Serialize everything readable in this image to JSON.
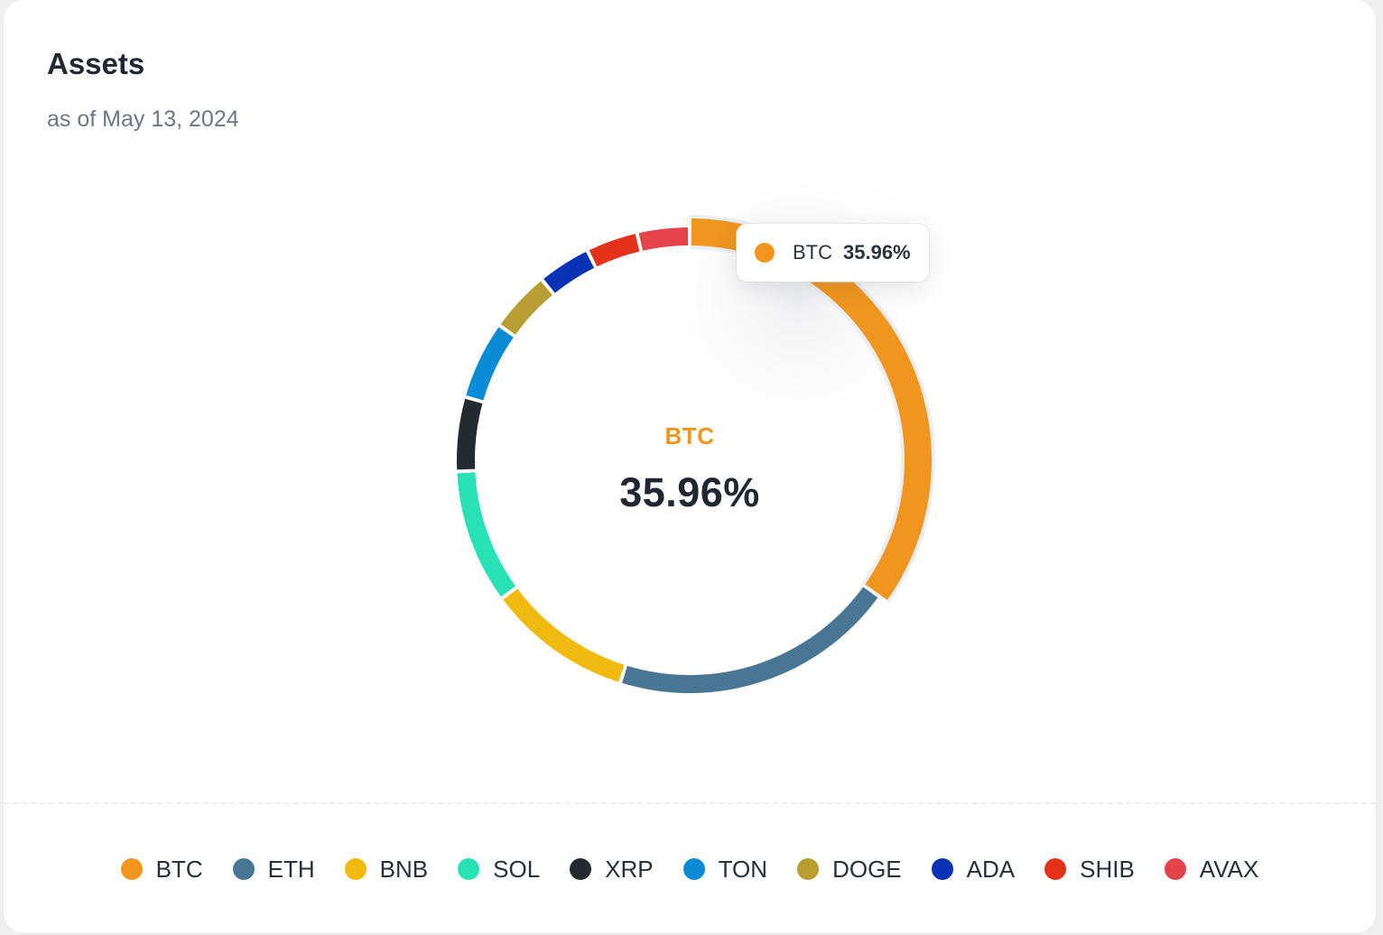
{
  "header": {
    "title": "Assets",
    "subtitle": "as of May 13, 2024"
  },
  "center": {
    "label": "BTC",
    "value": "35.96%"
  },
  "tooltip": {
    "label": "BTC",
    "value": "35.96%"
  },
  "colors": {
    "highlight": "#f0951e"
  },
  "chart_data": {
    "type": "pie",
    "variant": "donut",
    "highlighted": "BTC",
    "legend_position": "bottom",
    "series": [
      {
        "name": "BTC",
        "value": 35.96,
        "color": "#f0951e"
      },
      {
        "name": "ETH",
        "value": 20.5,
        "color": "#4a7696"
      },
      {
        "name": "BNB",
        "value": 10.4,
        "color": "#f0ba0f"
      },
      {
        "name": "SOL",
        "value": 9.6,
        "color": "#28e2b6"
      },
      {
        "name": "XRP",
        "value": 5.3,
        "color": "#232a31"
      },
      {
        "name": "TON",
        "value": 5.6,
        "color": "#0a8bd6"
      },
      {
        "name": "DOGE",
        "value": 4.4,
        "color": "#b89e30"
      },
      {
        "name": "ADA",
        "value": 3.8,
        "color": "#0833b6"
      },
      {
        "name": "SHIB",
        "value": 3.7,
        "color": "#e5311a"
      },
      {
        "name": "AVAX",
        "value": 3.74,
        "color": "#e5434a"
      }
    ]
  }
}
